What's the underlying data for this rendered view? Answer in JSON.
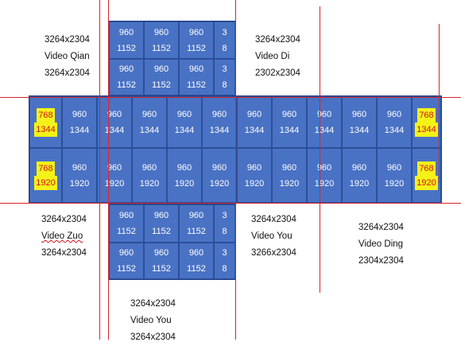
{
  "tile_color": "#4a72c4",
  "tile_border_color": "#2b4f98",
  "highlight_color": "#f5f218",
  "guide_color": "#d8242e",
  "top_block": [
    [
      [
        "960",
        "1152"
      ],
      [
        "960",
        "1152"
      ],
      [
        "960",
        "1152"
      ],
      [
        "3",
        "8"
      ]
    ],
    [
      [
        "960",
        "1152"
      ],
      [
        "960",
        "1152"
      ],
      [
        "960",
        "1152"
      ],
      [
        "3",
        "8"
      ]
    ]
  ],
  "middle_block": [
    [
      [
        "768",
        "1344",
        true
      ],
      [
        "960",
        "1344"
      ],
      [
        "960",
        "1344"
      ],
      [
        "960",
        "1344"
      ],
      [
        "960",
        "1344"
      ],
      [
        "960",
        "1344"
      ],
      [
        "960",
        "1344"
      ],
      [
        "960",
        "1344"
      ],
      [
        "960",
        "1344"
      ],
      [
        "960",
        "1344"
      ],
      [
        "960",
        "1344"
      ],
      [
        "768",
        "1344",
        true
      ]
    ],
    [
      [
        "768",
        "1920",
        true
      ],
      [
        "960",
        "1920"
      ],
      [
        "960",
        "1920"
      ],
      [
        "960",
        "1920"
      ],
      [
        "960",
        "1920"
      ],
      [
        "960",
        "1920"
      ],
      [
        "960",
        "1920"
      ],
      [
        "960",
        "1920"
      ],
      [
        "960",
        "1920"
      ],
      [
        "960",
        "1920"
      ],
      [
        "960",
        "1920"
      ],
      [
        "768",
        "1920",
        true
      ]
    ]
  ],
  "bottom_block": [
    [
      [
        "960",
        "1152"
      ],
      [
        "960",
        "1152"
      ],
      [
        "960",
        "1152"
      ],
      [
        "3",
        "8"
      ]
    ],
    [
      [
        "960",
        "1152"
      ],
      [
        "960",
        "1152"
      ],
      [
        "960",
        "1152"
      ],
      [
        "3",
        "8"
      ]
    ]
  ],
  "captions": {
    "top_left": [
      "3264x2304",
      "Video Qian",
      "3264x2304"
    ],
    "top_right": [
      "3264x2304",
      "Video Di",
      "2302x2304"
    ],
    "mid_left": [
      "3264x2304",
      "Video Zuo",
      "3264x2304"
    ],
    "mid_center": [
      "3264x2304",
      "Video You",
      "3266x2304"
    ],
    "mid_right": [
      "3264x2304",
      "Video Ding",
      "2304x2304"
    ],
    "bottom": [
      "3264x2304",
      "Video You",
      "3264x2304"
    ]
  }
}
